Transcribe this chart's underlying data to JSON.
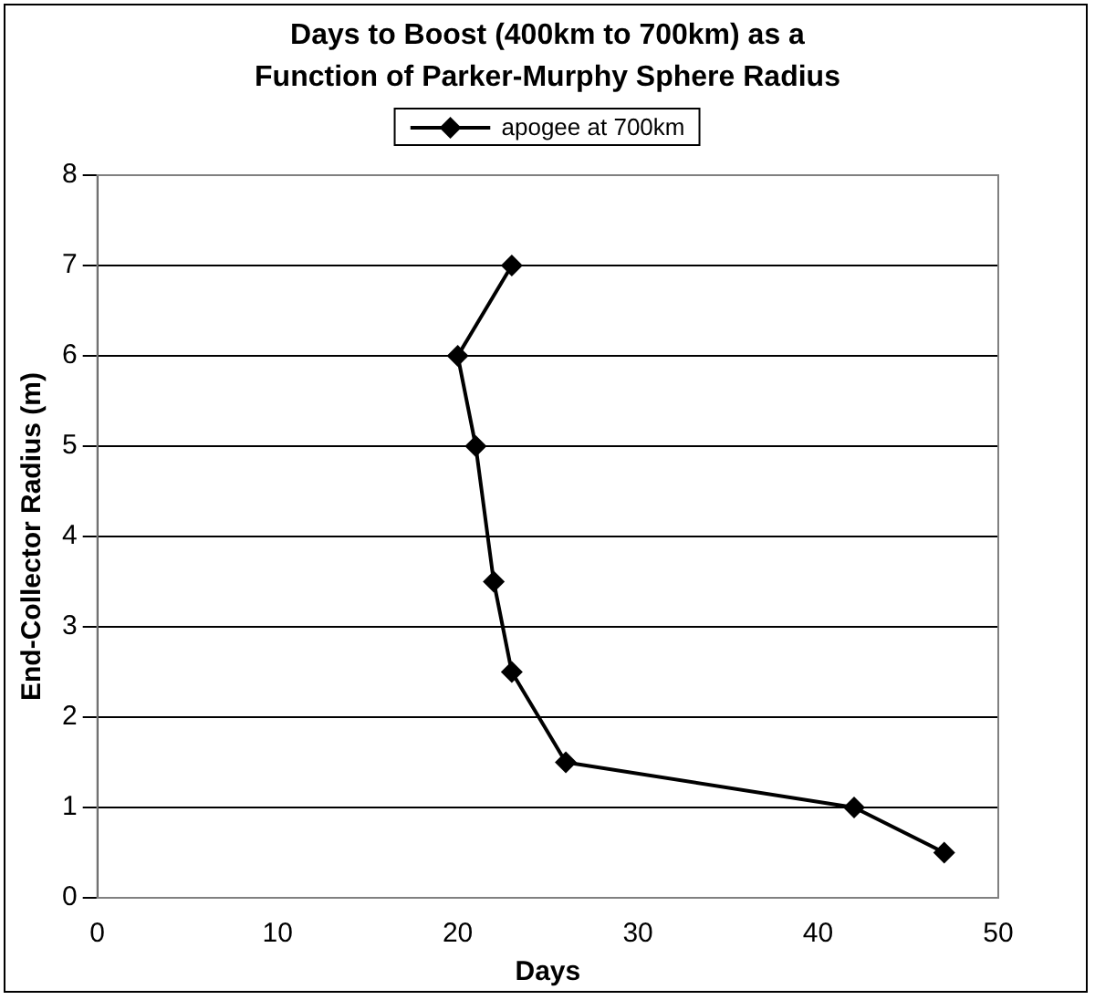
{
  "chart_data": {
    "type": "line",
    "title": "Days to Boost (400km to 700km) as a Function of Parker-Murphy Sphere Radius",
    "xlabel": "Days",
    "ylabel": "End-Collector Radius (m)",
    "series": [
      {
        "name": "apogee at 700km",
        "color": "#000000",
        "x": [
          47,
          42,
          26,
          23,
          22,
          21,
          20,
          23
        ],
        "values": [
          0.5,
          1,
          1.5,
          2.5,
          3.5,
          5,
          6,
          7
        ]
      }
    ],
    "xlim": [
      0,
      50
    ],
    "xticks": [
      0,
      10,
      20,
      30,
      40,
      50
    ],
    "ylim": [
      0,
      8
    ],
    "yticks": [
      0,
      1,
      2,
      3,
      4,
      5,
      6,
      7,
      8
    ],
    "grid": "y",
    "legend": "top",
    "marker": "diamond",
    "line_style": "solid"
  }
}
